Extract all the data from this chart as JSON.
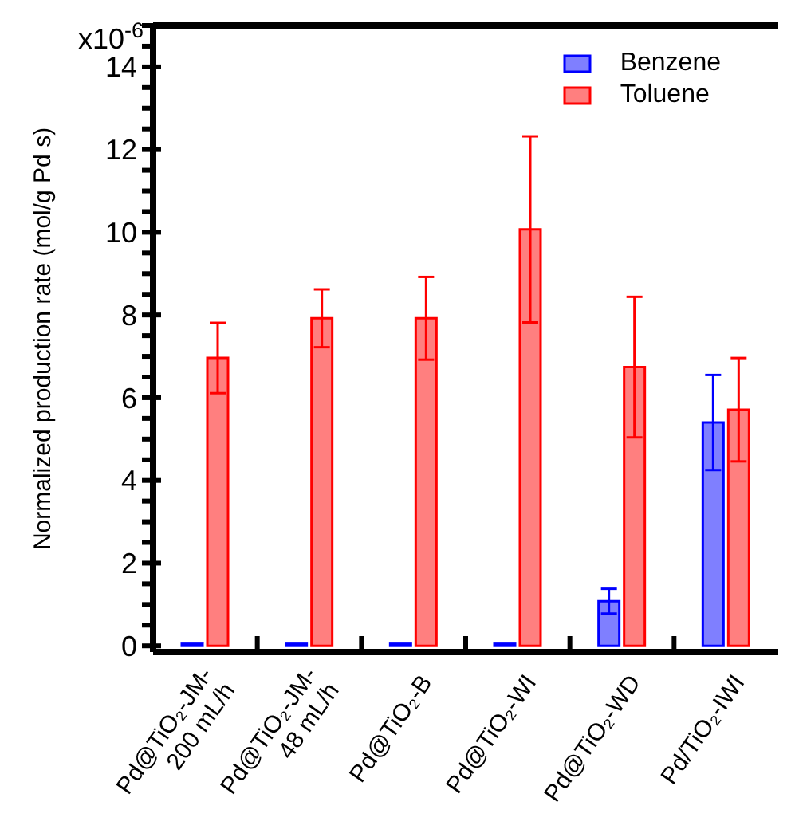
{
  "chart_data": {
    "type": "bar",
    "ylabel": "Normalized production rate (mol/g Pd s)",
    "categories": [
      "Pd@TiO₂-JM-\n200 mL/h",
      "Pd@TiO₂-JM-\n48 mL/h",
      "Pd@TiO₂-B",
      "Pd@TiO₂-WI",
      "Pd@TiO₂-WD",
      "Pd/TiO₂-IWI"
    ],
    "series": [
      {
        "name": "Benzene",
        "color": "#0000ff",
        "values": [
          0.05,
          0.05,
          0.05,
          0.05,
          1.08,
          5.4
        ],
        "errors": [
          null,
          null,
          null,
          null,
          0.3,
          1.15
        ]
      },
      {
        "name": "Toluene",
        "color": "#ff0000",
        "values": [
          6.96,
          7.92,
          7.92,
          10.07,
          6.74,
          5.71
        ],
        "errors": [
          0.85,
          0.7,
          1.0,
          2.25,
          1.7,
          1.25
        ]
      }
    ],
    "ylim": [
      -0.15,
      15
    ],
    "yticks": [
      0,
      {
        "value": 0.5,
        "label": null
      },
      {
        "value": 1,
        "label": null
      },
      {
        "value": 1.5,
        "label": null
      },
      2,
      {
        "value": 2.5,
        "label": null
      },
      {
        "value": 3,
        "label": null
      },
      {
        "value": 3.5,
        "label": null
      },
      4,
      {
        "value": 4.5,
        "label": null
      },
      {
        "value": 5,
        "label": null
      },
      {
        "value": 5.5,
        "label": null
      },
      6,
      {
        "value": 6.5,
        "label": null
      },
      {
        "value": 7,
        "label": null
      },
      {
        "value": 7.5,
        "label": null
      },
      8,
      {
        "value": 8.5,
        "label": null
      },
      {
        "value": 9,
        "label": null
      },
      {
        "value": 9.5,
        "label": null
      },
      10,
      {
        "value": 10.5,
        "label": null
      },
      {
        "value": 11,
        "label": null
      },
      {
        "value": 11.5,
        "label": null
      },
      12,
      {
        "value": 12.5,
        "label": null
      },
      {
        "value": 13,
        "label": null
      },
      {
        "value": 13.5,
        "label": null
      },
      14,
      {
        "value": 14.5,
        "label": null
      },
      {
        "value": 15,
        "label": null
      }
    ],
    "annotations": [
      "x10$^{-6}$"
    ],
    "legend": "top right"
  }
}
